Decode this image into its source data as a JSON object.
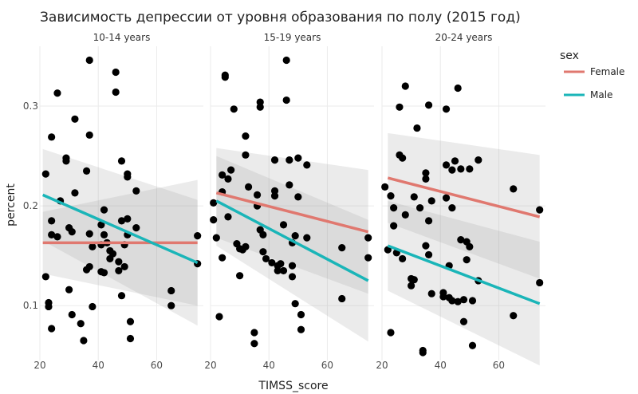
{
  "chart_data": {
    "type": "scatter",
    "title": "Зависимость депрессии от уровня образования по полу (2015 год)",
    "xlabel": "TIMSS_score",
    "ylabel": "percent",
    "xlim": [
      20,
      76
    ],
    "ylim": [
      0.045,
      0.36
    ],
    "x_ticks": [
      20,
      40,
      60
    ],
    "y_ticks": [
      0.1,
      0.2,
      0.3
    ],
    "x_tick_labels": [
      "20",
      "40",
      "60"
    ],
    "y_tick_labels": [
      "0.1",
      "0.2",
      "0.3"
    ],
    "grid": true,
    "legend": {
      "title": "sex",
      "position": "right",
      "entries": [
        {
          "name": "Female",
          "color": "#e0786f"
        },
        {
          "name": "Male",
          "color": "#1ab5b8"
        }
      ]
    },
    "point_color": "#000000",
    "facets": [
      {
        "label": "10-14 years",
        "points": [
          [
            22,
            0.232
          ],
          [
            22,
            0.129
          ],
          [
            23,
            0.103
          ],
          [
            23,
            0.099
          ],
          [
            24,
            0.269
          ],
          [
            24,
            0.185
          ],
          [
            24,
            0.171
          ],
          [
            24,
            0.077
          ],
          [
            26,
            0.313
          ],
          [
            26,
            0.169
          ],
          [
            27,
            0.205
          ],
          [
            29,
            0.248
          ],
          [
            29,
            0.245
          ],
          [
            30,
            0.178
          ],
          [
            30,
            0.116
          ],
          [
            31,
            0.174
          ],
          [
            31,
            0.091
          ],
          [
            32,
            0.287
          ],
          [
            32,
            0.213
          ],
          [
            34,
            0.082
          ],
          [
            35,
            0.065
          ],
          [
            36,
            0.235
          ],
          [
            36,
            0.136
          ],
          [
            37,
            0.346
          ],
          [
            37,
            0.271
          ],
          [
            37,
            0.172
          ],
          [
            37,
            0.139
          ],
          [
            38,
            0.159
          ],
          [
            38,
            0.099
          ],
          [
            41,
            0.181
          ],
          [
            41,
            0.161
          ],
          [
            41,
            0.134
          ],
          [
            42,
            0.196
          ],
          [
            42,
            0.171
          ],
          [
            42,
            0.133
          ],
          [
            43,
            0.163
          ],
          [
            44,
            0.147
          ],
          [
            44,
            0.155
          ],
          [
            45,
            0.152
          ],
          [
            46,
            0.334
          ],
          [
            46,
            0.314
          ],
          [
            47,
            0.144
          ],
          [
            47,
            0.135
          ],
          [
            48,
            0.245
          ],
          [
            48,
            0.185
          ],
          [
            48,
            0.11
          ],
          [
            49,
            0.139
          ],
          [
            49,
            0.161
          ],
          [
            50,
            0.232
          ],
          [
            50,
            0.229
          ],
          [
            50,
            0.187
          ],
          [
            50,
            0.171
          ],
          [
            51,
            0.084
          ],
          [
            51,
            0.067
          ],
          [
            53,
            0.215
          ],
          [
            53,
            0.178
          ],
          [
            65,
            0.115
          ],
          [
            65,
            0.1
          ],
          [
            74,
            0.17
          ],
          [
            74,
            0.142
          ]
        ],
        "fits": [
          {
            "series": "Female",
            "x": [
              21,
              74
            ],
            "y": [
              0.163,
              0.163
            ],
            "lower": [
              0.132,
              0.1
            ],
            "upper": [
              0.194,
              0.226
            ]
          },
          {
            "series": "Male",
            "x": [
              21,
              74
            ],
            "y": [
              0.211,
              0.143
            ],
            "lower": [
              0.165,
              0.08
            ],
            "upper": [
              0.257,
              0.206
            ]
          }
        ]
      },
      {
        "label": "15-19 years",
        "points": [
          [
            21,
            0.203
          ],
          [
            21,
            0.186
          ],
          [
            22,
            0.168
          ],
          [
            23,
            0.089
          ],
          [
            24,
            0.231
          ],
          [
            24,
            0.214
          ],
          [
            24,
            0.148
          ],
          [
            25,
            0.331
          ],
          [
            25,
            0.329
          ],
          [
            26,
            0.227
          ],
          [
            26,
            0.189
          ],
          [
            27,
            0.236
          ],
          [
            28,
            0.297
          ],
          [
            29,
            0.162
          ],
          [
            30,
            0.157
          ],
          [
            30,
            0.13
          ],
          [
            31,
            0.156
          ],
          [
            32,
            0.27
          ],
          [
            32,
            0.251
          ],
          [
            32,
            0.159
          ],
          [
            33,
            0.219
          ],
          [
            35,
            0.073
          ],
          [
            35,
            0.062
          ],
          [
            36,
            0.211
          ],
          [
            36,
            0.2
          ],
          [
            37,
            0.304
          ],
          [
            37,
            0.299
          ],
          [
            37,
            0.176
          ],
          [
            38,
            0.171
          ],
          [
            38,
            0.154
          ],
          [
            39,
            0.147
          ],
          [
            41,
            0.143
          ],
          [
            42,
            0.246
          ],
          [
            42,
            0.215
          ],
          [
            42,
            0.21
          ],
          [
            43,
            0.14
          ],
          [
            43,
            0.135
          ],
          [
            44,
            0.142
          ],
          [
            45,
            0.135
          ],
          [
            45,
            0.181
          ],
          [
            46,
            0.346
          ],
          [
            46,
            0.306
          ],
          [
            47,
            0.246
          ],
          [
            47,
            0.221
          ],
          [
            48,
            0.163
          ],
          [
            48,
            0.129
          ],
          [
            48,
            0.14
          ],
          [
            49,
            0.102
          ],
          [
            49,
            0.17
          ],
          [
            50,
            0.248
          ],
          [
            50,
            0.209
          ],
          [
            51,
            0.091
          ],
          [
            51,
            0.076
          ],
          [
            53,
            0.241
          ],
          [
            53,
            0.168
          ],
          [
            65,
            0.158
          ],
          [
            65,
            0.107
          ],
          [
            74,
            0.168
          ],
          [
            74,
            0.148
          ]
        ],
        "fits": [
          {
            "series": "Female",
            "x": [
              22,
              74
            ],
            "y": [
              0.213,
              0.174
            ],
            "lower": [
              0.168,
              0.112
            ],
            "upper": [
              0.258,
              0.236
            ]
          },
          {
            "series": "Male",
            "x": [
              22,
              74
            ],
            "y": [
              0.205,
              0.125
            ],
            "lower": [
              0.16,
              0.064
            ],
            "upper": [
              0.25,
              0.186
            ]
          }
        ]
      },
      {
        "label": "20-24 years",
        "points": [
          [
            21,
            0.219
          ],
          [
            22,
            0.156
          ],
          [
            23,
            0.073
          ],
          [
            23,
            0.21
          ],
          [
            24,
            0.198
          ],
          [
            24,
            0.18
          ],
          [
            25,
            0.153
          ],
          [
            26,
            0.251
          ],
          [
            26,
            0.299
          ],
          [
            27,
            0.248
          ],
          [
            27,
            0.147
          ],
          [
            28,
            0.32
          ],
          [
            28,
            0.191
          ],
          [
            30,
            0.127
          ],
          [
            30,
            0.12
          ],
          [
            31,
            0.209
          ],
          [
            31,
            0.126
          ],
          [
            32,
            0.278
          ],
          [
            33,
            0.198
          ],
          [
            34,
            0.055
          ],
          [
            34,
            0.053
          ],
          [
            35,
            0.16
          ],
          [
            35,
            0.227
          ],
          [
            35,
            0.233
          ],
          [
            36,
            0.301
          ],
          [
            36,
            0.185
          ],
          [
            36,
            0.151
          ],
          [
            37,
            0.205
          ],
          [
            37,
            0.112
          ],
          [
            41,
            0.109
          ],
          [
            41,
            0.113
          ],
          [
            42,
            0.297
          ],
          [
            42,
            0.241
          ],
          [
            42,
            0.208
          ],
          [
            43,
            0.14
          ],
          [
            43,
            0.108
          ],
          [
            44,
            0.236
          ],
          [
            44,
            0.198
          ],
          [
            44,
            0.105
          ],
          [
            45,
            0.245
          ],
          [
            46,
            0.318
          ],
          [
            46,
            0.104
          ],
          [
            47,
            0.237
          ],
          [
            47,
            0.166
          ],
          [
            48,
            0.106
          ],
          [
            48,
            0.084
          ],
          [
            49,
            0.164
          ],
          [
            49,
            0.146
          ],
          [
            50,
            0.237
          ],
          [
            50,
            0.159
          ],
          [
            51,
            0.105
          ],
          [
            51,
            0.06
          ],
          [
            53,
            0.246
          ],
          [
            53,
            0.125
          ],
          [
            65,
            0.217
          ],
          [
            65,
            0.09
          ],
          [
            74,
            0.196
          ],
          [
            74,
            0.123
          ]
        ],
        "fits": [
          {
            "series": "Female",
            "x": [
              22,
              74
            ],
            "y": [
              0.228,
              0.189
            ],
            "lower": [
              0.183,
              0.127
            ],
            "upper": [
              0.273,
              0.251
            ]
          },
          {
            "series": "Male",
            "x": [
              22,
              74
            ],
            "y": [
              0.16,
              0.102
            ],
            "lower": [
              0.115,
              0.04
            ],
            "upper": [
              0.205,
              0.164
            ]
          }
        ]
      }
    ]
  }
}
